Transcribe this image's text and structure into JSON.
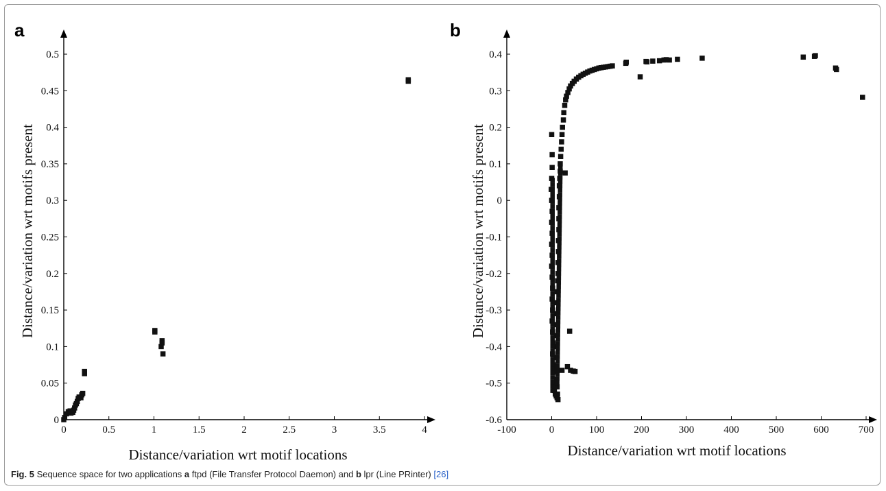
{
  "caption": {
    "figure_label": "Fig. 5",
    "text_1": " Sequence space for two applications ",
    "label_a": "a",
    "text_2": " ftpd (File Transfer Protocol Daemon) and ",
    "label_b": "b",
    "text_3": " lpr (Line PRinter) ",
    "reference": "[26]"
  },
  "colors": {
    "marker": "#111111",
    "axis": "#000000",
    "reference_link": "#2a62c9"
  },
  "chart_data": [
    {
      "panel": "a",
      "type": "scatter",
      "xlabel": "Distance/variation wrt motif locations",
      "ylabel": "Distance/variation wrt motifs present",
      "xlim": [
        0,
        4
      ],
      "ylim": [
        0,
        0.5
      ],
      "xticks": [
        "0",
        "0.5",
        "1",
        "1.5",
        "2",
        "2.5",
        "3",
        "3.5",
        "4"
      ],
      "yticks": [
        "0",
        "0.05",
        "0.1",
        "0.15",
        "0.2",
        "0.25",
        "0.3",
        "0.35",
        "0.4",
        "0.45",
        "0.5"
      ],
      "grid": false,
      "points": [
        [
          0.0,
          0.0
        ],
        [
          0.01,
          0.003
        ],
        [
          0.03,
          0.008
        ],
        [
          0.05,
          0.011
        ],
        [
          0.07,
          0.012
        ],
        [
          0.08,
          0.009
        ],
        [
          0.1,
          0.01
        ],
        [
          0.11,
          0.013
        ],
        [
          0.12,
          0.016
        ],
        [
          0.13,
          0.02
        ],
        [
          0.14,
          0.022
        ],
        [
          0.15,
          0.025
        ],
        [
          0.16,
          0.029
        ],
        [
          0.17,
          0.031
        ],
        [
          0.19,
          0.03
        ],
        [
          0.2,
          0.034
        ],
        [
          0.21,
          0.036
        ],
        [
          0.23,
          0.063
        ],
        [
          0.23,
          0.066
        ],
        [
          1.01,
          0.122
        ],
        [
          1.01,
          0.12
        ],
        [
          1.09,
          0.108
        ],
        [
          1.09,
          0.105
        ],
        [
          1.08,
          0.1
        ],
        [
          1.1,
          0.09
        ],
        [
          3.82,
          0.463
        ],
        [
          3.82,
          0.465
        ]
      ]
    },
    {
      "panel": "b",
      "type": "scatter",
      "xlabel": "Distance/variation wrt motif locations",
      "ylabel": "Distance/variation wrt motifs present",
      "xlim": [
        -100,
        700
      ],
      "ylim": [
        -0.6,
        0.4
      ],
      "xticks": [
        "-100",
        "0",
        "100",
        "200",
        "300",
        "400",
        "500",
        "600",
        "700"
      ],
      "yticks": [
        "-0.6",
        "-0.5",
        "-0.4",
        "-0.3",
        "-0.2",
        "-0.1",
        "0",
        "0.1",
        "0.2",
        "0.3",
        "0.4"
      ],
      "grid": false,
      "points": [
        [
          0,
          0.18
        ],
        [
          1,
          0.125
        ],
        [
          1,
          0.09
        ],
        [
          0,
          0.06
        ],
        [
          -1,
          0.03
        ],
        [
          0,
          0.0
        ],
        [
          1,
          -0.03
        ],
        [
          0,
          -0.06
        ],
        [
          1,
          -0.09
        ],
        [
          0,
          -0.12
        ],
        [
          1,
          -0.15
        ],
        [
          0,
          -0.18
        ],
        [
          1,
          -0.21
        ],
        [
          2,
          -0.24
        ],
        [
          1,
          -0.27
        ],
        [
          2,
          -0.3
        ],
        [
          1,
          -0.33
        ],
        [
          2,
          -0.36
        ],
        [
          3,
          -0.39
        ],
        [
          2,
          -0.42
        ],
        [
          3,
          -0.45
        ],
        [
          3,
          -0.47
        ],
        [
          5,
          -0.5
        ],
        [
          6,
          -0.52
        ],
        [
          8,
          -0.53
        ],
        [
          10,
          -0.535
        ],
        [
          12,
          -0.54
        ],
        [
          14,
          -0.545
        ],
        [
          13,
          -0.53
        ],
        [
          12,
          -0.51
        ],
        [
          11,
          -0.49
        ],
        [
          10,
          -0.46
        ],
        [
          10,
          -0.43
        ],
        [
          9,
          -0.4
        ],
        [
          10,
          -0.37
        ],
        [
          11,
          -0.34
        ],
        [
          10,
          -0.31
        ],
        [
          11,
          -0.28
        ],
        [
          12,
          -0.25
        ],
        [
          13,
          -0.22
        ],
        [
          14,
          -0.2
        ],
        [
          14,
          -0.17
        ],
        [
          15,
          -0.14
        ],
        [
          15,
          -0.11
        ],
        [
          16,
          -0.08
        ],
        [
          16,
          -0.05
        ],
        [
          16,
          -0.02
        ],
        [
          17,
          0.01
        ],
        [
          17,
          0.04
        ],
        [
          18,
          0.06
        ],
        [
          19,
          0.08
        ],
        [
          19,
          0.1
        ],
        [
          20,
          0.12
        ],
        [
          21,
          0.14
        ],
        [
          22,
          0.16
        ],
        [
          23,
          0.18
        ],
        [
          24,
          0.2
        ],
        [
          26,
          0.22
        ],
        [
          27,
          0.24
        ],
        [
          29,
          0.26
        ],
        [
          31,
          0.275
        ],
        [
          33,
          0.285
        ],
        [
          36,
          0.295
        ],
        [
          39,
          0.305
        ],
        [
          42,
          0.313
        ],
        [
          46,
          0.32
        ],
        [
          50,
          0.326
        ],
        [
          55,
          0.332
        ],
        [
          60,
          0.337
        ],
        [
          65,
          0.341
        ],
        [
          70,
          0.345
        ],
        [
          75,
          0.348
        ],
        [
          80,
          0.351
        ],
        [
          85,
          0.354
        ],
        [
          90,
          0.356
        ],
        [
          95,
          0.358
        ],
        [
          100,
          0.36
        ],
        [
          105,
          0.362
        ],
        [
          110,
          0.363
        ],
        [
          115,
          0.364
        ],
        [
          120,
          0.365
        ],
        [
          125,
          0.366
        ],
        [
          130,
          0.367
        ],
        [
          135,
          0.368
        ],
        [
          165,
          0.375
        ],
        [
          166,
          0.378
        ],
        [
          197,
          0.338
        ],
        [
          210,
          0.38
        ],
        [
          212,
          0.379
        ],
        [
          225,
          0.381
        ],
        [
          240,
          0.382
        ],
        [
          250,
          0.384
        ],
        [
          255,
          0.385
        ],
        [
          262,
          0.384
        ],
        [
          280,
          0.386
        ],
        [
          335,
          0.389
        ],
        [
          560,
          0.392
        ],
        [
          585,
          0.394
        ],
        [
          587,
          0.396
        ],
        [
          632,
          0.362
        ],
        [
          634,
          0.358
        ],
        [
          692,
          0.282
        ],
        [
          23,
          -0.465
        ],
        [
          35,
          -0.455
        ],
        [
          42,
          -0.465
        ],
        [
          48,
          -0.467
        ],
        [
          52,
          -0.468
        ],
        [
          40,
          -0.358
        ],
        [
          30,
          0.075
        ]
      ]
    }
  ]
}
